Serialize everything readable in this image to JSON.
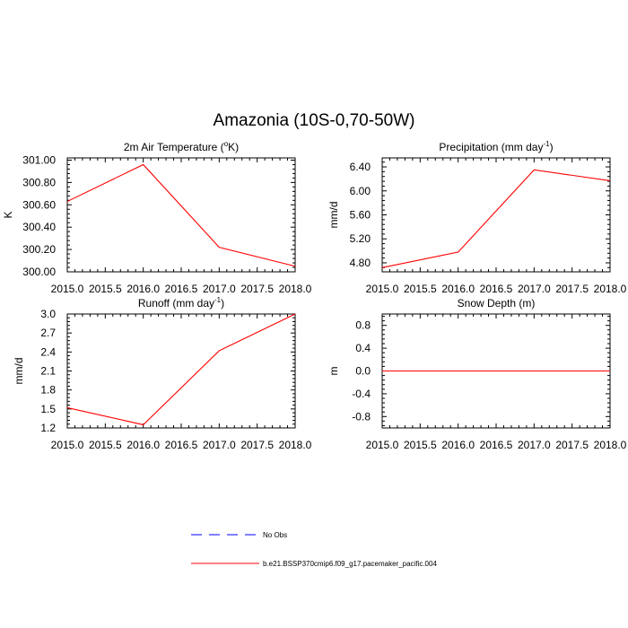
{
  "figure": {
    "title": "Amazonia (10S-0,70-50W)"
  },
  "chart_data": [
    {
      "type": "line",
      "title": "2m Air Temperature (",
      "title_sup": "o",
      "title_end": "K)",
      "ylabel": "K",
      "x": [
        2015.0,
        2016.0,
        2017.0,
        2018.0
      ],
      "series": [
        {
          "values": [
            300.63,
            300.96,
            300.22,
            300.05
          ],
          "color": "#ff0000"
        }
      ],
      "xlim": [
        2015.0,
        2018.0
      ],
      "ylim": [
        300.0,
        301.02
      ],
      "xticks": [
        "2015.0",
        "2015.5",
        "2016.0",
        "2016.5",
        "2017.0",
        "2017.5",
        "2018.0"
      ],
      "yticks": [
        "300.00",
        "300.20",
        "300.40",
        "300.60",
        "300.80",
        "301.00"
      ],
      "ytick_values": [
        300.0,
        300.2,
        300.4,
        300.6,
        300.8,
        301.0
      ],
      "grid": false
    },
    {
      "type": "line",
      "title": "Precipitation (mm day",
      "title_sup": "-1",
      "title_end": ")",
      "ylabel": "mm/d",
      "x": [
        2015.0,
        2016.0,
        2017.0,
        2018.0
      ],
      "series": [
        {
          "values": [
            4.72,
            4.98,
            6.35,
            6.17
          ],
          "color": "#ff0000"
        }
      ],
      "xlim": [
        2015.0,
        2018.0
      ],
      "ylim": [
        4.65,
        6.55
      ],
      "xticks": [
        "2015.0",
        "2015.5",
        "2016.0",
        "2016.5",
        "2017.0",
        "2017.5",
        "2018.0"
      ],
      "yticks": [
        "4.80",
        "5.20",
        "5.60",
        "6.00",
        "6.40"
      ],
      "ytick_values": [
        4.8,
        5.2,
        5.6,
        6.0,
        6.4
      ],
      "grid": false
    },
    {
      "type": "line",
      "title": "Runoff (mm day",
      "title_sup": "-1",
      "title_end": ")",
      "ylabel": "mm/d",
      "x": [
        2015.0,
        2016.0,
        2017.0,
        2018.0
      ],
      "series": [
        {
          "values": [
            1.52,
            1.25,
            2.42,
            3.0
          ],
          "color": "#ff0000"
        }
      ],
      "xlim": [
        2015.0,
        2018.0
      ],
      "ylim": [
        1.2,
        3.0
      ],
      "xticks": [
        "2015.0",
        "2015.5",
        "2016.0",
        "2016.5",
        "2017.0",
        "2017.5",
        "2018.0"
      ],
      "yticks": [
        "1.2",
        "1.5",
        "1.8",
        "2.1",
        "2.4",
        "2.7",
        "3.0"
      ],
      "ytick_values": [
        1.2,
        1.5,
        1.8,
        2.1,
        2.4,
        2.7,
        3.0
      ],
      "grid": false
    },
    {
      "type": "line",
      "title": "Snow Depth (m)",
      "title_sup": "",
      "title_end": "",
      "ylabel": "m",
      "x": [
        2015.0,
        2016.0,
        2017.0,
        2018.0
      ],
      "series": [
        {
          "values": [
            0.0,
            0.0,
            0.0,
            0.0
          ],
          "color": "#ff0000"
        }
      ],
      "xlim": [
        2015.0,
        2018.0
      ],
      "ylim": [
        -1.0,
        1.0
      ],
      "xticks": [
        "2015.0",
        "2015.5",
        "2016.0",
        "2016.5",
        "2017.0",
        "2017.5",
        "2018.0"
      ],
      "yticks": [
        "-0.8",
        "-0.4",
        "0.0",
        "0.4",
        "0.8"
      ],
      "ytick_values": [
        -0.8,
        -0.4,
        0.0,
        0.4,
        0.8
      ],
      "grid": false
    }
  ],
  "legend": {
    "items": [
      {
        "label": "No Obs",
        "color": "#0000ff",
        "style": "dashed"
      },
      {
        "label": "b.e21.BSSP370cmip6.f09_g17.pacemaker_pacific.004",
        "color": "#ff0000",
        "style": "solid"
      }
    ]
  }
}
